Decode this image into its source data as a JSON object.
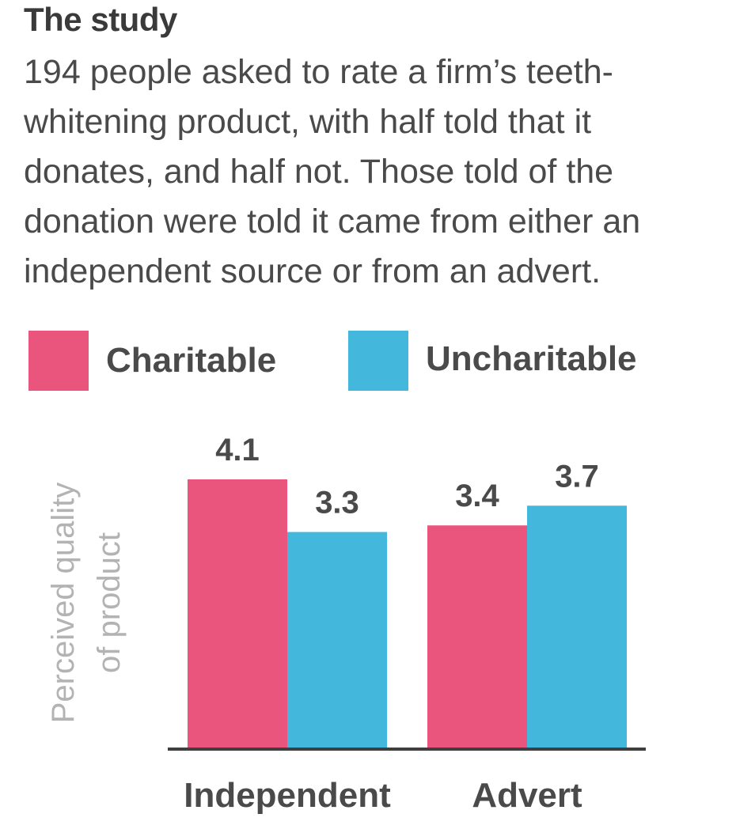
{
  "heading": "The study",
  "description": "194 people asked to rate a firm’s teeth-whitening product, with half told that it donates, and half not. Those told of the donation were told it came from either an independent source or from an advert.",
  "colors": {
    "charitable": "#e9557c",
    "uncharitable": "#43b8dc",
    "axis": "#3f3f3f",
    "text": "#4a4a4a",
    "ylabel": "#b3b3b3"
  },
  "chart_data": {
    "type": "bar",
    "categories": [
      "Independent",
      "Advert"
    ],
    "series": [
      {
        "name": "Charitable",
        "values": [
          4.1,
          3.4
        ]
      },
      {
        "name": "Uncharitable",
        "values": [
          3.3,
          3.7
        ]
      }
    ],
    "data_labels": [
      [
        "4.1",
        "3.3"
      ],
      [
        "3.4",
        "3.7"
      ]
    ],
    "ylabel": "Perceived quality of product",
    "ylabel_lines": [
      "Perceived quality",
      "of product"
    ],
    "xlabel": "",
    "ylim": [
      0,
      4.1
    ],
    "grid": false,
    "legend": "top"
  }
}
